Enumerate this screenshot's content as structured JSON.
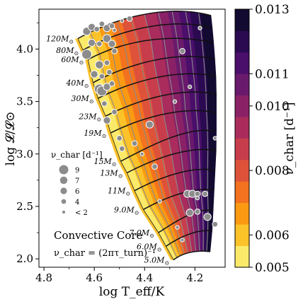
{
  "chart_data": {
    "type": "scatter",
    "xlabel": "log T_eff/K",
    "ylabel": "log 𝓛/𝓛⊙",
    "xlim": [
      4.82,
      4.08
    ],
    "ylim": [
      1.92,
      4.38
    ],
    "x_ticks": [
      4.8,
      4.6,
      4.4,
      4.2
    ],
    "x_tick_labels": [
      "4.8",
      "4.6",
      "4.4",
      "4.2"
    ],
    "y_ticks": [
      2.0,
      2.5,
      3.0,
      3.5,
      4.0
    ],
    "y_tick_labels": [
      "2.0",
      "2.5",
      "3.0",
      "3.5",
      "4.0"
    ],
    "colorbar": {
      "label": "ν_char [d⁻¹]",
      "min": 0.005,
      "max": 0.013,
      "ticks": [
        0.005,
        0.006,
        0.008,
        0.01,
        0.011,
        0.013
      ],
      "tick_labels": [
        "0.005",
        "0.006",
        "0.008",
        "0.010",
        "0.011",
        "0.013"
      ],
      "colors": [
        "#fbea6a",
        "#fcc229",
        "#fa9a12",
        "#f2721f",
        "#df523a",
        "#c73d4c",
        "#a92c5c",
        "#8a2166",
        "#6a1a6d",
        "#4a0f6a",
        "#2b0a52",
        "#120a30"
      ]
    },
    "tracks": [
      {
        "mass": "120",
        "logT": 4.665,
        "logL": 4.1
      },
      {
        "mass": "80",
        "logT": 4.645,
        "logL": 3.99
      },
      {
        "mass": "60",
        "logT": 4.625,
        "logL": 3.9
      },
      {
        "mass": "40",
        "logT": 4.605,
        "logL": 3.68
      },
      {
        "mass": "30",
        "logT": 4.585,
        "logL": 3.53
      },
      {
        "mass": "23",
        "logT": 4.555,
        "logL": 3.36
      },
      {
        "mass": "19",
        "logT": 4.535,
        "logL": 3.2
      },
      {
        "mass": "15",
        "logT": 4.495,
        "logL": 2.93
      },
      {
        "mass": "13",
        "logT": 4.47,
        "logL": 2.82
      },
      {
        "mass": "11",
        "logT": 4.44,
        "logL": 2.65
      },
      {
        "mass": "9.0",
        "logT": 4.405,
        "logL": 2.47
      },
      {
        "mass": "7.0",
        "logT": 4.345,
        "logL": 2.25
      },
      {
        "mass": "6.0",
        "logT": 4.315,
        "logL": 2.12
      },
      {
        "mass": "5.0",
        "logT": 4.285,
        "logL": 1.99
      }
    ],
    "stars": [
      {
        "logT": 4.63,
        "logL": 4.17,
        "nu": 7
      },
      {
        "logT": 4.61,
        "logL": 4.21,
        "nu": 6
      },
      {
        "logT": 4.59,
        "logL": 4.19,
        "nu": 4
      },
      {
        "logT": 4.57,
        "logL": 4.24,
        "nu": 4
      },
      {
        "logT": 4.55,
        "logL": 4.2,
        "nu": 6
      },
      {
        "logT": 4.53,
        "logL": 4.22,
        "nu": 4
      },
      {
        "logT": 4.52,
        "logL": 4.18,
        "nu": 2
      },
      {
        "logT": 4.61,
        "logL": 4.06,
        "nu": 6
      },
      {
        "logT": 4.58,
        "logL": 4.05,
        "nu": 4
      },
      {
        "logT": 4.55,
        "logL": 4.1,
        "nu": 7
      },
      {
        "logT": 4.53,
        "logL": 4.05,
        "nu": 6
      },
      {
        "logT": 4.52,
        "logL": 3.98,
        "nu": 4
      },
      {
        "logT": 4.63,
        "logL": 3.95,
        "nu": 9
      },
      {
        "logT": 4.58,
        "logL": 3.85,
        "nu": 7
      },
      {
        "logT": 4.55,
        "logL": 3.87,
        "nu": 4
      },
      {
        "logT": 4.6,
        "logL": 3.76,
        "nu": 6
      },
      {
        "logT": 4.57,
        "logL": 3.74,
        "nu": 4
      },
      {
        "logT": 4.54,
        "logL": 3.78,
        "nu": 4
      },
      {
        "logT": 4.58,
        "logL": 3.62,
        "nu": 9
      },
      {
        "logT": 4.57,
        "logL": 3.6,
        "nu": 9
      },
      {
        "logT": 4.55,
        "logL": 3.64,
        "nu": 6
      },
      {
        "logT": 4.53,
        "logL": 3.67,
        "nu": 4
      },
      {
        "logT": 4.56,
        "logL": 3.48,
        "nu": 4
      },
      {
        "logT": 4.55,
        "logL": 3.32,
        "nu": 6
      },
      {
        "logT": 4.52,
        "logL": 3.4,
        "nu": 4
      },
      {
        "logT": 4.5,
        "logL": 3.15,
        "nu": 4
      },
      {
        "logT": 4.49,
        "logL": 3.05,
        "nu": 4
      },
      {
        "logT": 4.44,
        "logL": 3.1,
        "nu": 4
      },
      {
        "logT": 4.38,
        "logL": 3.28,
        "nu": 6
      },
      {
        "logT": 4.41,
        "logL": 3.0,
        "nu": 2
      },
      {
        "logT": 4.36,
        "logL": 2.88,
        "nu": 4
      },
      {
        "logT": 4.23,
        "logL": 2.62,
        "nu": 6
      },
      {
        "logT": 4.21,
        "logL": 2.62,
        "nu": 6
      },
      {
        "logT": 4.19,
        "logL": 2.62,
        "nu": 4
      },
      {
        "logT": 4.16,
        "logL": 2.62,
        "nu": 4
      },
      {
        "logT": 4.22,
        "logL": 2.44,
        "nu": 6
      },
      {
        "logT": 4.19,
        "logL": 2.45,
        "nu": 4
      },
      {
        "logT": 4.15,
        "logL": 2.4,
        "nu": 6
      },
      {
        "logT": 4.12,
        "logL": 2.33,
        "nu": 4
      },
      {
        "logT": 4.25,
        "logL": 2.18,
        "nu": 2
      },
      {
        "logT": 4.19,
        "logL": 2.58,
        "nu": 2
      },
      {
        "logT": 4.12,
        "logL": 3.15,
        "nu": 2
      },
      {
        "logT": 4.22,
        "logL": 3.64,
        "nu": 2
      },
      {
        "logT": 4.25,
        "logL": 3.98,
        "nu": 4
      },
      {
        "logT": 4.18,
        "logL": 4.2,
        "nu": 2
      },
      {
        "logT": 4.46,
        "logL": 4.29,
        "nu": 4
      },
      {
        "logT": 4.49,
        "logL": 4.27,
        "nu": 2
      },
      {
        "logT": 4.28,
        "logL": 3.5,
        "nu": 2
      },
      {
        "logT": 4.34,
        "logL": 2.55,
        "nu": 2
      },
      {
        "logT": 4.27,
        "logL": 2.3,
        "nu": 2
      }
    ],
    "legend": {
      "title": "ν_char [d⁻¹]",
      "entries": [
        {
          "label": "9",
          "nu": 9
        },
        {
          "label": "7",
          "nu": 7
        },
        {
          "label": "6",
          "nu": 6
        },
        {
          "label": "4",
          "nu": 4
        },
        {
          "label": "< 2",
          "nu": 2
        }
      ],
      "placement": "lower-left"
    },
    "annotations": [
      "Convective Core",
      "ν_char = (2πτ_turn)⁻¹"
    ]
  }
}
